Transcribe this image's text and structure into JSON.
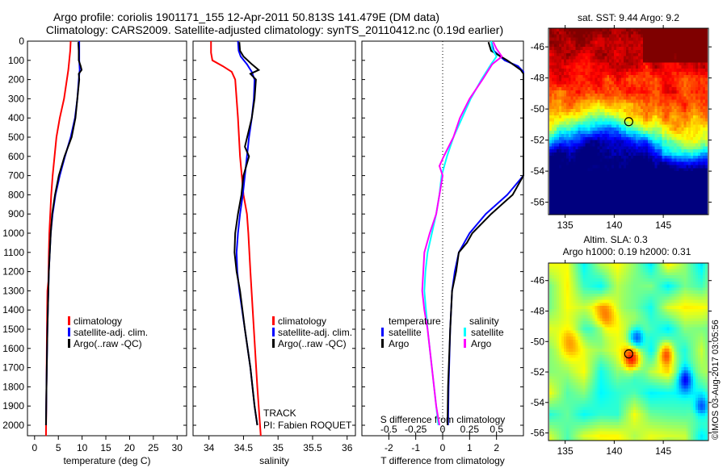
{
  "title": {
    "line1": "Argo profile: coriolis 1901171_155 12-Apr-2011 50.813S 141.479E (DM data)",
    "line2": "Climatology: CARS2009. Satellite-adjusted climatology: synTS_20110412.nc (0.19d earlier)"
  },
  "side_stamp": "©IMOS 03-Aug-2017 03:05:56",
  "chart_data": [
    {
      "type": "line",
      "name": "temperature",
      "xlabel": "temperature (deg C)",
      "ylabel": "",
      "xlim": [
        -1.5,
        32
      ],
      "ylim": [
        2055,
        0
      ],
      "xticks": [
        "0",
        "5",
        "10",
        "15",
        "20",
        "25",
        "30"
      ],
      "yticks": [
        "0",
        "100",
        "200",
        "300",
        "400",
        "500",
        "600",
        "700",
        "800",
        "900",
        "1000",
        "1100",
        "1200",
        "1300",
        "1400",
        "1500",
        "1600",
        "1700",
        "1800",
        "1900",
        "2000"
      ],
      "legend": [
        "climatology",
        "satellite-adj. clim.",
        "Argo(..raw -QC)"
      ],
      "series": [
        {
          "name": "climatology",
          "color": "#ff0000",
          "depth": [
            0,
            50,
            100,
            150,
            200,
            300,
            400,
            500,
            600,
            700,
            800,
            900,
            1000,
            1100,
            1250,
            1300,
            1500,
            1800,
            2055
          ],
          "values": [
            7.6,
            7.5,
            7.3,
            7.1,
            6.8,
            6.2,
            5.3,
            4.6,
            4.2,
            3.8,
            3.5,
            3.3,
            3.1,
            3.0,
            2.9,
            2.7,
            2.6,
            2.5,
            2.4
          ]
        },
        {
          "name": "satellite-adj. clim.",
          "color": "#0000ff",
          "depth": [
            0,
            50,
            100,
            150,
            200,
            300,
            400,
            500,
            600,
            700,
            800,
            900,
            1000,
            1200,
            1500,
            1800,
            2000
          ],
          "values": [
            9.4,
            9.4,
            9.4,
            9.5,
            9.3,
            9.0,
            8.5,
            7.6,
            6.4,
            5.3,
            4.4,
            3.8,
            3.4,
            3.0,
            2.7,
            2.5,
            2.4
          ]
        },
        {
          "name": "Argo(..raw -QC)",
          "color": "#000000",
          "depth": [
            5,
            50,
            100,
            130,
            150,
            170,
            200,
            300,
            400,
            500,
            600,
            700,
            800,
            900,
            1000,
            1200,
            1500,
            1800,
            2000
          ],
          "values": [
            9.2,
            9.3,
            9.3,
            9.7,
            9.9,
            9.3,
            9.4,
            9.0,
            8.6,
            7.8,
            6.3,
            5.1,
            4.3,
            3.7,
            3.4,
            3.0,
            2.7,
            2.5,
            2.4
          ]
        }
      ]
    },
    {
      "type": "line",
      "name": "salinity",
      "xlabel": "salinity",
      "xlim": [
        33.77,
        36.12
      ],
      "ylim": [
        2055,
        0
      ],
      "xticks": [
        "34",
        "34.5",
        "35",
        "35.5",
        "36"
      ],
      "legend": [
        "climatology",
        "satellite-adj. clim.",
        "Argo(..raw -QC)"
      ],
      "annotations": [
        "TRACK",
        "PI: Fabien ROQUET"
      ],
      "series": [
        {
          "name": "climatology",
          "color": "#ff0000",
          "depth": [
            0,
            60,
            100,
            130,
            160,
            200,
            300,
            400,
            600,
            800,
            900,
            1000,
            1200,
            1500,
            1800,
            2055
          ],
          "values": [
            34.03,
            34.03,
            34.05,
            34.2,
            34.33,
            34.38,
            34.4,
            34.42,
            34.45,
            34.5,
            34.55,
            34.57,
            34.6,
            34.65,
            34.7,
            34.75
          ]
        },
        {
          "name": "satellite-adj. clim.",
          "color": "#0000ff",
          "depth": [
            0,
            50,
            80,
            120,
            160,
            200,
            300,
            400,
            500,
            600,
            700,
            800,
            900,
            1000,
            1100,
            1200,
            1300,
            1500,
            1700,
            1900,
            2000
          ],
          "values": [
            34.42,
            34.43,
            34.46,
            34.55,
            34.62,
            34.66,
            34.65,
            34.62,
            34.58,
            34.55,
            34.52,
            34.49,
            34.45,
            34.42,
            34.4,
            34.41,
            34.44,
            34.52,
            34.6,
            34.66,
            34.7
          ]
        },
        {
          "name": "Argo(..raw -QC)",
          "color": "#000000",
          "depth": [
            5,
            50,
            80,
            120,
            150,
            170,
            200,
            300,
            400,
            550,
            600,
            700,
            800,
            900,
            1000,
            1100,
            1200,
            1300,
            1500,
            1700,
            1900,
            2000
          ],
          "values": [
            34.44,
            34.45,
            34.5,
            34.62,
            34.72,
            34.6,
            34.68,
            34.66,
            34.62,
            34.52,
            34.58,
            34.5,
            34.47,
            34.42,
            34.38,
            34.37,
            34.4,
            34.45,
            34.52,
            34.6,
            34.66,
            34.7
          ]
        }
      ]
    },
    {
      "type": "line",
      "name": "difference",
      "xlabel": "T difference from climatology",
      "xlim": [
        -3,
        3
      ],
      "ylim": [
        2055,
        0
      ],
      "xticks": [
        "-2",
        "-1",
        "0",
        "1",
        "2"
      ],
      "secondary_xlabel": "S difference from climatology",
      "secondary_xlim": [
        -0.75,
        0.75
      ],
      "secondary_xticks": [
        "-0.5",
        "-0.25",
        "0",
        "0.25",
        "0.5"
      ],
      "legend": {
        "temperature_title": "temperature",
        "salinity_title": "salinity",
        "entries": [
          "satellite",
          "Argo",
          "satellite",
          "Argo"
        ]
      },
      "series": [
        {
          "name": "T satellite",
          "axis": "T",
          "color": "#0000ff",
          "depth": [
            0,
            50,
            100,
            130,
            160,
            400,
            700,
            750,
            800,
            900,
            1000,
            1050,
            1100,
            1200,
            1300,
            1500,
            1800,
            2000
          ],
          "values": [
            1.8,
            1.9,
            2.3,
            2.8,
            3.2,
            3.2,
            3.1,
            2.7,
            2.4,
            1.6,
            1.0,
            0.8,
            0.6,
            0.45,
            0.35,
            0.28,
            0.22,
            0.2
          ]
        },
        {
          "name": "T Argo",
          "axis": "T",
          "color": "#000000",
          "depth": [
            5,
            50,
            100,
            150,
            170,
            200,
            400,
            700,
            750,
            800,
            850,
            900,
            1000,
            1050,
            1100,
            1200,
            1300,
            1500,
            1800,
            2000
          ],
          "values": [
            1.7,
            1.8,
            2.4,
            2.9,
            3.2,
            3.3,
            3.3,
            3.2,
            2.8,
            2.6,
            2.2,
            1.8,
            1.1,
            0.9,
            0.6,
            0.5,
            0.35,
            0.28,
            0.2,
            0.18
          ]
        },
        {
          "name": "S satellite",
          "axis": "S",
          "color": "#00ffff",
          "depth": [
            0,
            40,
            80,
            120,
            200,
            300,
            400,
            500,
            600,
            700,
            800,
            900,
            1000,
            1100,
            1200,
            1300,
            1500,
            1700,
            1900,
            2000
          ],
          "values": [
            0.45,
            0.46,
            0.5,
            0.45,
            0.36,
            0.26,
            0.18,
            0.1,
            0.04,
            -0.01,
            -0.03,
            -0.06,
            -0.1,
            -0.14,
            -0.16,
            -0.17,
            -0.14,
            -0.1,
            -0.06,
            -0.04
          ]
        },
        {
          "name": "S Argo",
          "axis": "S",
          "color": "#ff00ff",
          "depth": [
            5,
            40,
            80,
            120,
            200,
            300,
            400,
            500,
            600,
            650,
            700,
            800,
            900,
            1000,
            1100,
            1200,
            1300,
            1400,
            1500,
            1700,
            1900,
            2000
          ],
          "values": [
            0.47,
            0.5,
            0.55,
            0.46,
            0.37,
            0.25,
            0.16,
            0.1,
            0.01,
            -0.03,
            0.0,
            -0.03,
            -0.06,
            -0.12,
            -0.17,
            -0.18,
            -0.19,
            -0.17,
            -0.14,
            -0.1,
            -0.06,
            -0.03
          ]
        }
      ]
    },
    {
      "type": "heatmap",
      "name": "sst-map",
      "title": "sat. SST: 9.44  Argo: 9.2",
      "xlim": [
        133.3,
        149.6
      ],
      "ylim": [
        -56.8,
        -44.8
      ],
      "xticks": [
        "135",
        "140",
        "145"
      ],
      "yticks": [
        "-46",
        "-48",
        "-50",
        "-52",
        "-54",
        "-56"
      ],
      "marker": {
        "lon": 141.479,
        "lat": -50.813
      },
      "colormap": "jet"
    },
    {
      "type": "heatmap",
      "name": "sla-map",
      "title": "Altim. SLA: 0.3",
      "subtitle": "Argo h1000: 0.19 h2000: 0.31",
      "xlim": [
        133.3,
        149.6
      ],
      "ylim": [
        -56.5,
        -44.85
      ],
      "xticks": [
        "135",
        "140",
        "145"
      ],
      "yticks": [
        "-46",
        "-48",
        "-50",
        "-52",
        "-54",
        "-56"
      ],
      "marker": {
        "lon": 141.479,
        "lat": -50.813
      },
      "colormap": "jet"
    }
  ]
}
